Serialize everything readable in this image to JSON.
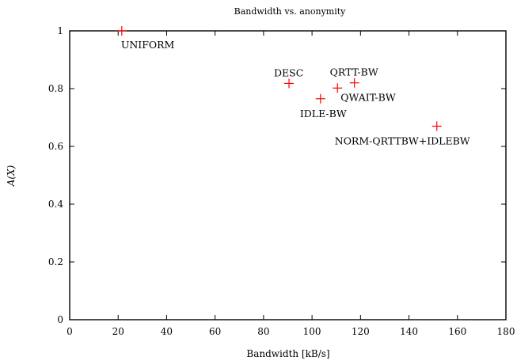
{
  "chart_data": {
    "type": "scatter",
    "title": "Bandwidth vs. anonymity",
    "xlabel": "Bandwidth [kB/s]",
    "ylabel": "A(X)",
    "xlim": [
      0,
      180
    ],
    "ylim": [
      0,
      1
    ],
    "x_ticks": [
      0,
      20,
      40,
      60,
      80,
      100,
      120,
      140,
      160,
      180
    ],
    "y_ticks": [
      0,
      0.2,
      0.4,
      0.6,
      0.8,
      1
    ],
    "x_tick_labels": [
      "0",
      "20",
      "40",
      "60",
      "80",
      "100",
      "120",
      "140",
      "160",
      "180"
    ],
    "y_tick_labels": [
      "0",
      "0.2",
      "0.4",
      "0.6",
      "0.8",
      "1"
    ],
    "marker": "plus",
    "marker_color": "#ff0000",
    "grid": false,
    "legend": "none",
    "points": [
      {
        "label": "UNIFORM",
        "x": 21.5,
        "y": 1.0,
        "label_anchor": "below-right"
      },
      {
        "label": "DESC",
        "x": 90.5,
        "y": 0.818,
        "label_anchor": "above-left"
      },
      {
        "label": "IDLE-BW",
        "x": 103.5,
        "y": 0.765,
        "label_anchor": "below"
      },
      {
        "label": "QWAIT-BW",
        "x": 110.5,
        "y": 0.802,
        "label_anchor": "below-right"
      },
      {
        "label": "QRTT-BW",
        "x": 117.5,
        "y": 0.82,
        "label_anchor": "above-left"
      },
      {
        "label": "NORM-QRTTBW+IDLEBW",
        "x": 151.5,
        "y": 0.67,
        "label_anchor": "below"
      }
    ]
  }
}
